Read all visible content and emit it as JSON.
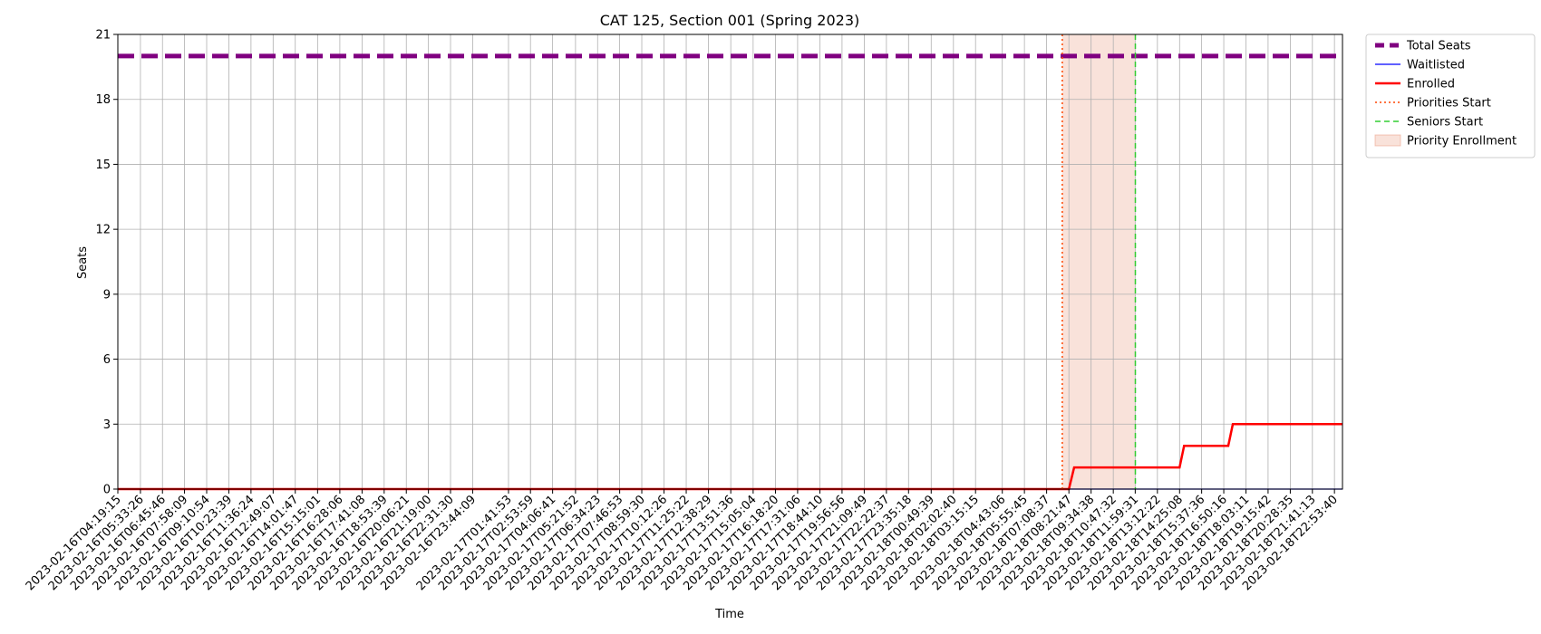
{
  "chart_data": {
    "type": "line",
    "title": "CAT 125, Section 001 (Spring 2023)",
    "xlabel": "Time",
    "ylabel": "Seats",
    "ylim": [
      0,
      21
    ],
    "yticks": [
      0,
      3,
      6,
      9,
      12,
      15,
      18,
      21
    ],
    "grid": true,
    "legend_position": "outside-top-right",
    "x_ticks": [
      "2023-02-16T04:19:15",
      "2023-02-16T05:33:26",
      "2023-02-16T06:45:46",
      "2023-02-16T07:58:09",
      "2023-02-16T09:10:54",
      "2023-02-16T10:23:39",
      "2023-02-16T11:36:24",
      "2023-02-16T12:49:07",
      "2023-02-16T14:01:47",
      "2023-02-16T15:15:01",
      "2023-02-16T16:28:06",
      "2023-02-16T17:41:08",
      "2023-02-16T18:53:39",
      "2023-02-16T20:06:21",
      "2023-02-16T21:19:00",
      "2023-02-16T22:31:30",
      "2023-02-16T23:44:09",
      "2023-02-17T01:41:53",
      "2023-02-17T02:53:59",
      "2023-02-17T04:06:41",
      "2023-02-17T05:21:52",
      "2023-02-17T06:34:23",
      "2023-02-17T07:46:53",
      "2023-02-17T08:59:30",
      "2023-02-17T10:12:26",
      "2023-02-17T11:25:22",
      "2023-02-17T12:38:29",
      "2023-02-17T13:51:36",
      "2023-02-17T15:05:04",
      "2023-02-17T16:18:20",
      "2023-02-17T17:31:06",
      "2023-02-17T18:44:10",
      "2023-02-17T19:56:56",
      "2023-02-17T21:09:49",
      "2023-02-17T22:22:37",
      "2023-02-17T23:35:18",
      "2023-02-18T00:49:39",
      "2023-02-18T02:02:40",
      "2023-02-18T03:15:15",
      "2023-02-18T04:43:06",
      "2023-02-18T05:55:45",
      "2023-02-18T07:08:37",
      "2023-02-18T08:21:47",
      "2023-02-18T09:34:38",
      "2023-02-18T10:47:32",
      "2023-02-18T11:59:31",
      "2023-02-18T13:12:22",
      "2023-02-18T14:25:08",
      "2023-02-18T15:37:36",
      "2023-02-18T16:50:16",
      "2023-02-18T18:03:11",
      "2023-02-18T19:15:42",
      "2023-02-18T20:28:35",
      "2023-02-18T21:41:13",
      "2023-02-18T22:53:40"
    ],
    "series": [
      {
        "name": "Total Seats",
        "color": "#800080",
        "style": "dashed-thick",
        "points": [
          [
            "2023-02-16T04:19:15",
            20
          ],
          [
            "2023-02-18T23:20:00",
            20
          ]
        ]
      },
      {
        "name": "Waitlisted",
        "color": "#0000ff",
        "style": "solid-thin",
        "points": [
          [
            "2023-02-16T04:19:15",
            0
          ],
          [
            "2023-02-18T23:20:00",
            0
          ]
        ]
      },
      {
        "name": "Enrolled",
        "color": "#ff0000",
        "style": "solid-thick",
        "points": [
          [
            "2023-02-16T04:19:15",
            0
          ],
          [
            "2023-02-18T08:21:47",
            0
          ],
          [
            "2023-02-18T08:39:00",
            1
          ],
          [
            "2023-02-18T14:25:08",
            1
          ],
          [
            "2023-02-18T14:40:00",
            2
          ],
          [
            "2023-02-18T17:05:00",
            2
          ],
          [
            "2023-02-18T17:20:00",
            3
          ],
          [
            "2023-02-18T23:20:00",
            3
          ]
        ]
      }
    ],
    "vlines": [
      {
        "name": "Priorities Start",
        "x": "2023-02-18T08:00:00",
        "color": "#ff4500",
        "style": "dotted"
      },
      {
        "name": "Seniors Start",
        "x": "2023-02-18T12:00:00",
        "color": "#32cd32",
        "style": "dashed"
      }
    ],
    "spans": [
      {
        "name": "Priority Enrollment",
        "x0": "2023-02-18T08:00:00",
        "x1": "2023-02-18T12:00:00",
        "color": "#e9967a"
      }
    ],
    "legend": [
      {
        "label": "Total Seats",
        "kind": "total"
      },
      {
        "label": "Waitlisted",
        "kind": "wait"
      },
      {
        "label": "Enrolled",
        "kind": "enrolled"
      },
      {
        "label": "Priorities Start",
        "kind": "prio"
      },
      {
        "label": "Seniors Start",
        "kind": "seniors"
      },
      {
        "label": "Priority Enrollment",
        "kind": "span"
      }
    ]
  }
}
